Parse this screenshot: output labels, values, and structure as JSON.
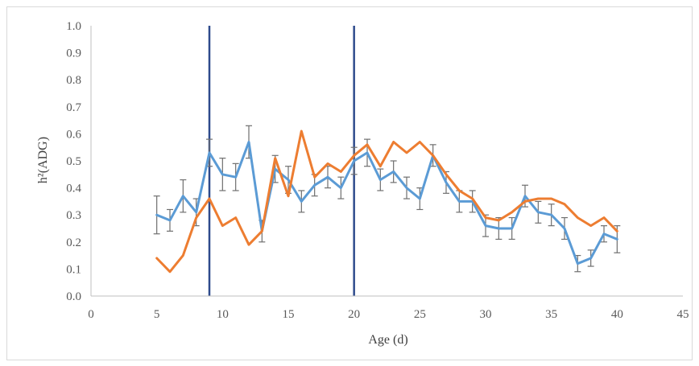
{
  "chart_data": {
    "type": "line",
    "xlabel": "Age (d)",
    "ylabel": "h²(ADG)",
    "xlim": [
      0,
      45
    ],
    "ylim": [
      0,
      1.0
    ],
    "xticks": [
      0,
      5,
      10,
      15,
      20,
      25,
      30,
      35,
      40,
      45
    ],
    "yticks": [
      0.0,
      0.1,
      0.2,
      0.3,
      0.4,
      0.5,
      0.6,
      0.7,
      0.8,
      0.9,
      1.0
    ],
    "ytick_labels": [
      "0.0",
      "0.1",
      "0.2",
      "0.3",
      "0.4",
      "0.5",
      "0.6",
      "0.7",
      "0.8",
      "0.9",
      "1.0"
    ],
    "grid": false,
    "legend": "none",
    "vlines": [
      {
        "x": 9,
        "color": "#2f4b8c"
      },
      {
        "x": 20,
        "color": "#2f4b8c"
      }
    ],
    "x": [
      5,
      6,
      7,
      8,
      9,
      10,
      11,
      12,
      13,
      14,
      15,
      16,
      17,
      18,
      19,
      20,
      21,
      22,
      23,
      24,
      25,
      26,
      27,
      28,
      29,
      30,
      31,
      32,
      33,
      34,
      35,
      36,
      37,
      38,
      39,
      40
    ],
    "series": [
      {
        "color": "#5b9bd5",
        "values": [
          0.3,
          0.28,
          0.37,
          0.31,
          0.53,
          0.45,
          0.44,
          0.57,
          0.24,
          0.47,
          0.43,
          0.35,
          0.41,
          0.44,
          0.4,
          0.5,
          0.53,
          0.43,
          0.46,
          0.4,
          0.36,
          0.52,
          0.42,
          0.35,
          0.35,
          0.26,
          0.25,
          0.25,
          0.37,
          0.31,
          0.3,
          0.25,
          0.12,
          0.14,
          0.23,
          0.21
        ],
        "error": [
          0.07,
          0.04,
          0.06,
          0.05,
          0.05,
          0.06,
          0.05,
          0.06,
          0.04,
          0.05,
          0.05,
          0.04,
          0.04,
          0.04,
          0.04,
          0.05,
          0.05,
          0.04,
          0.04,
          0.04,
          0.04,
          0.04,
          0.04,
          0.04,
          0.04,
          0.04,
          0.04,
          0.04,
          0.04,
          0.04,
          0.04,
          0.04,
          0.03,
          0.03,
          0.03,
          0.05
        ]
      },
      {
        "color": "#ed7d31",
        "values": [
          0.14,
          0.09,
          0.15,
          0.29,
          0.36,
          0.26,
          0.29,
          0.19,
          0.24,
          0.51,
          0.37,
          0.61,
          0.44,
          0.49,
          0.46,
          0.52,
          0.56,
          0.48,
          0.57,
          0.53,
          0.57,
          0.52,
          0.45,
          0.39,
          0.36,
          0.29,
          0.28,
          0.31,
          0.35,
          0.36,
          0.36,
          0.34,
          0.29,
          0.26,
          0.29,
          0.24
        ]
      }
    ]
  }
}
